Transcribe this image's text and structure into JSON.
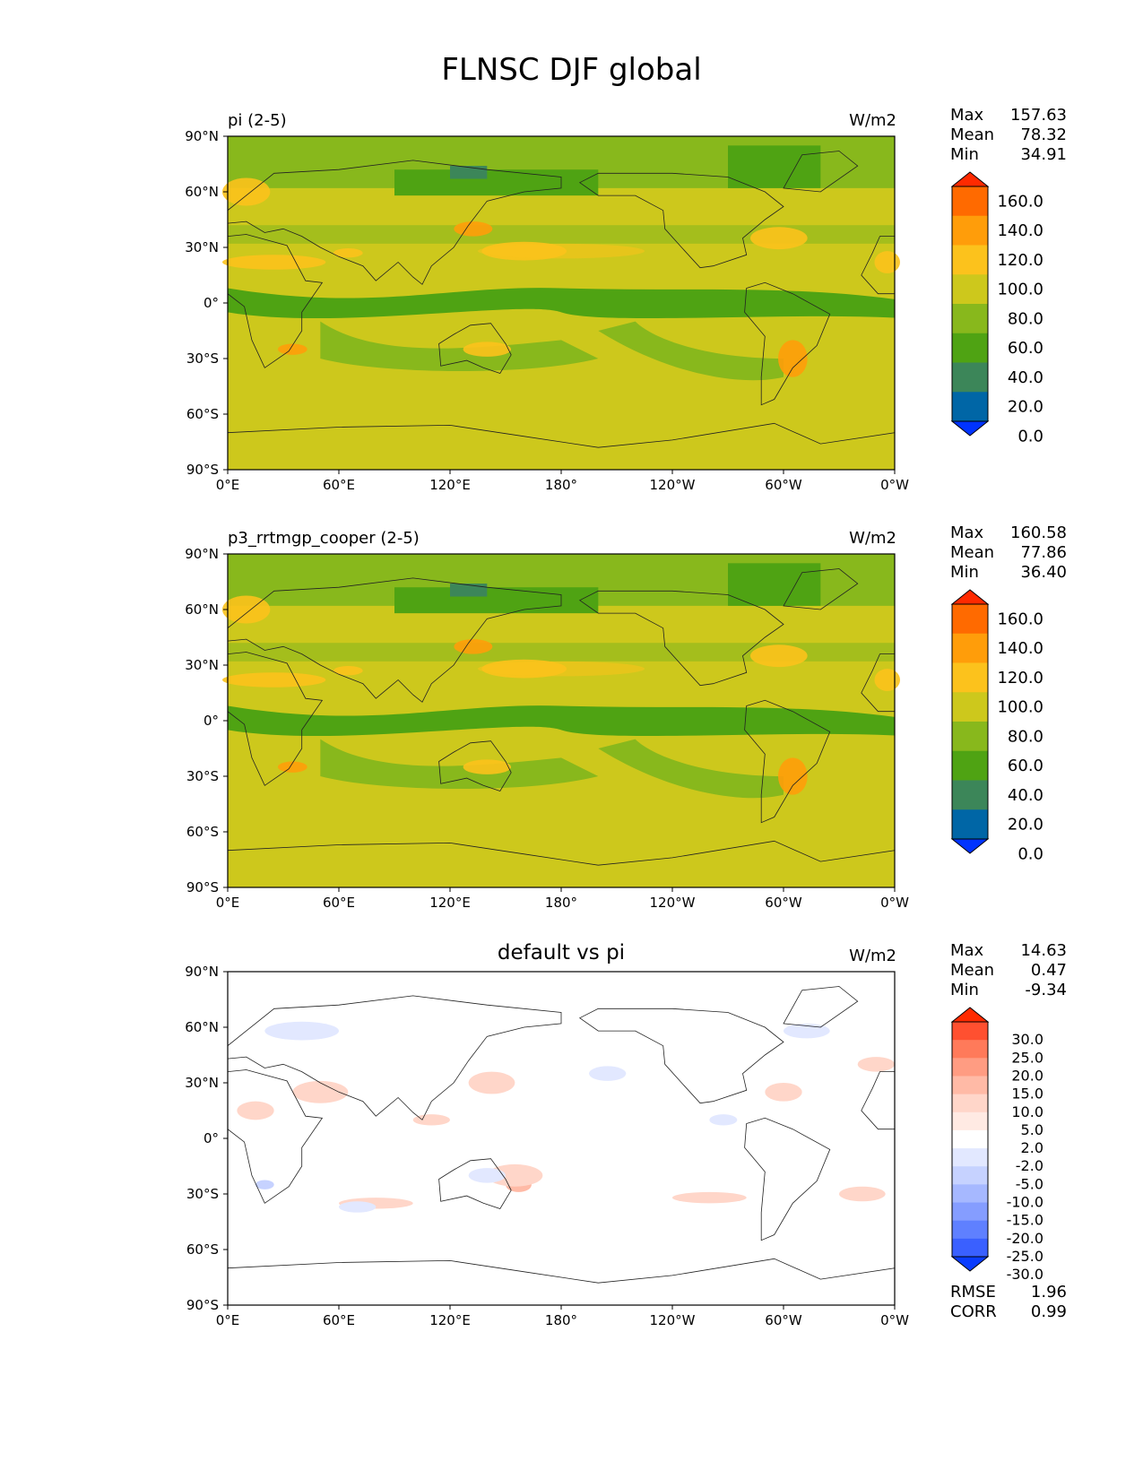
{
  "title": "FLNSC DJF global",
  "x_ticks": [
    "0°E",
    "60°E",
    "120°E",
    "180°",
    "120°W",
    "60°W",
    "0°W"
  ],
  "y_ticks": [
    "90°N",
    "60°N",
    "30°N",
    "0°",
    "30°S",
    "60°S",
    "90°S"
  ],
  "panels": [
    {
      "title": "pi (2-5)",
      "title_align": "left",
      "units": "W/m2",
      "stats": [
        {
          "label": "Max",
          "value": "157.63"
        },
        {
          "label": "Mean",
          "value": "78.32"
        },
        {
          "label": "Min",
          "value": "34.91"
        }
      ],
      "colorbar": {
        "labels": [
          "160.0",
          "140.0",
          "120.0",
          "100.0",
          "80.0",
          "60.0",
          "40.0",
          "20.0",
          "0.0"
        ],
        "colors": [
          "#ff2a00",
          "#ff6a00",
          "#ff9d0a",
          "#fcc21c",
          "#cdc81c",
          "#88b81c",
          "#4fa313",
          "#3c8659",
          "#0066a6",
          "#0033ff"
        ]
      }
    },
    {
      "title": "p3_rrtmgp_cooper (2-5)",
      "title_align": "left",
      "units": "W/m2",
      "stats": [
        {
          "label": "Max",
          "value": "160.58"
        },
        {
          "label": "Mean",
          "value": "77.86"
        },
        {
          "label": "Min",
          "value": "36.40"
        }
      ],
      "colorbar": {
        "labels": [
          "160.0",
          "140.0",
          "120.0",
          "100.0",
          "80.0",
          "60.0",
          "40.0",
          "20.0",
          "0.0"
        ],
        "colors": [
          "#ff2a00",
          "#ff6a00",
          "#ff9d0a",
          "#fcc21c",
          "#cdc81c",
          "#88b81c",
          "#4fa313",
          "#3c8659",
          "#0066a6",
          "#0033ff"
        ]
      }
    },
    {
      "title": "default vs pi",
      "title_align": "center",
      "units": "W/m2",
      "stats": [
        {
          "label": "Max",
          "value": "14.63"
        },
        {
          "label": "Mean",
          "value": "0.47"
        },
        {
          "label": "Min",
          "value": "-9.34"
        }
      ],
      "bottom_stats": [
        {
          "label": "RMSE",
          "value": "1.96"
        },
        {
          "label": "CORR",
          "value": "0.99"
        }
      ],
      "colorbar": {
        "labels": [
          "30.0",
          "25.0",
          "20.0",
          "15.0",
          "10.0",
          "5.0",
          "2.0",
          "-2.0",
          "-5.0",
          "-10.0",
          "-15.0",
          "-20.0",
          "-25.0",
          "-30.0"
        ],
        "colors": [
          "#ff2a00",
          "#ff5030",
          "#ff7a5a",
          "#ff9c82",
          "#ffbaa6",
          "#ffd6c9",
          "#ffeae3",
          "#ffffff",
          "#e2e8ff",
          "#c6d2ff",
          "#a6b8ff",
          "#859dff",
          "#5f80ff",
          "#3a60ff",
          "#0a3cff"
        ]
      }
    }
  ],
  "chart_data": [
    {
      "type": "heatmap",
      "title": "pi (2-5)",
      "units": "W/m2",
      "x_range": [
        0,
        360
      ],
      "y_range": [
        -90,
        90
      ],
      "levels": [
        0,
        20,
        40,
        60,
        80,
        100,
        120,
        140,
        160
      ],
      "max": 157.63,
      "mean": 78.32,
      "min": 34.91
    },
    {
      "type": "heatmap",
      "title": "p3_rrtmgp_cooper (2-5)",
      "units": "W/m2",
      "x_range": [
        0,
        360
      ],
      "y_range": [
        -90,
        90
      ],
      "levels": [
        0,
        20,
        40,
        60,
        80,
        100,
        120,
        140,
        160
      ],
      "max": 160.58,
      "mean": 77.86,
      "min": 36.4
    },
    {
      "type": "heatmap",
      "title": "default vs pi",
      "units": "W/m2",
      "x_range": [
        0,
        360
      ],
      "y_range": [
        -90,
        90
      ],
      "levels": [
        -30,
        -25,
        -20,
        -15,
        -10,
        -5,
        -2,
        2,
        5,
        10,
        15,
        20,
        25,
        30
      ],
      "max": 14.63,
      "mean": 0.47,
      "min": -9.34,
      "rmse": 1.96,
      "corr": 0.99
    }
  ]
}
